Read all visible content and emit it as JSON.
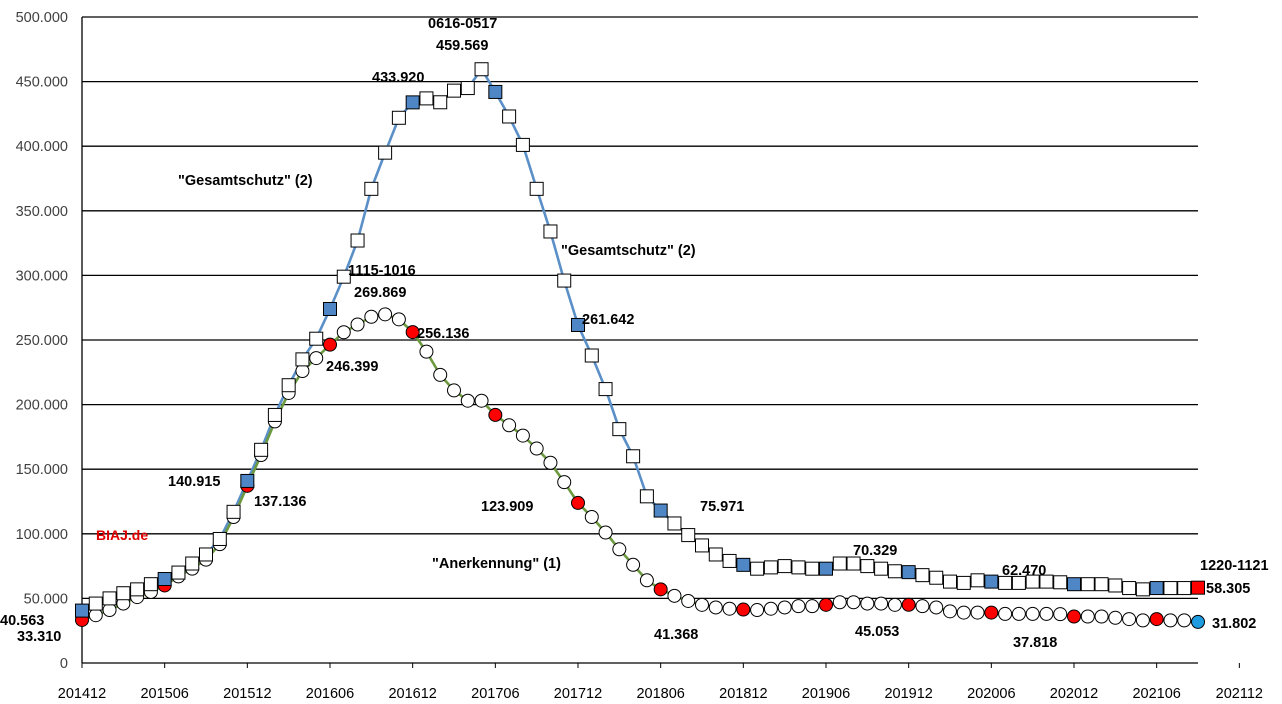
{
  "chart_data": {
    "type": "line",
    "x_start": "201412",
    "x_end": "202112",
    "xticks": [
      "201412",
      "201506",
      "201512",
      "201606",
      "201612",
      "201706",
      "201712",
      "201806",
      "201812",
      "201906",
      "201912",
      "202006",
      "202012",
      "202106",
      "202112"
    ],
    "ylim": [
      0,
      500000
    ],
    "yticks": [
      "0",
      "50.000",
      "100.000",
      "150.000",
      "200.000",
      "250.000",
      "300.000",
      "350.000",
      "400.000",
      "450.000",
      "500.000"
    ],
    "grid": "horizontal",
    "watermark": "BIAJ.de",
    "colors": {
      "gesamtschutz_line": "#5b8fc7",
      "gesamtschutz_highlight": "#4f86c6",
      "anerkennung_line": "#6d9a40",
      "anerkennung_highlight": "#ff0000",
      "last_anerkennung": "#1f9be0",
      "last_gesamtschutz": "#ff0000",
      "grid": "#000000"
    },
    "series": [
      {
        "id": "gesamtschutz",
        "marker": "square",
        "values": [
          40563,
          46000,
          50000,
          54000,
          57000,
          61000,
          65000,
          70000,
          77000,
          84000,
          96000,
          117000,
          140915,
          165000,
          192000,
          215000,
          235000,
          251000,
          274000,
          299000,
          327000,
          367000,
          395000,
          422000,
          433920,
          437000,
          434000,
          443000,
          445000,
          459569,
          442000,
          423000,
          401000,
          367000,
          334000,
          296000,
          261642,
          238000,
          212000,
          181000,
          160000,
          129000,
          118000,
          108000,
          99000,
          91000,
          84000,
          79000,
          75971,
          73000,
          74000,
          75000,
          74000,
          73000,
          73000,
          77000,
          77000,
          75000,
          73000,
          71000,
          70329,
          68000,
          66000,
          63000,
          62000,
          64000,
          63000,
          62000,
          62000,
          63000,
          63000,
          62470,
          61000,
          61000,
          61000,
          60000,
          58000,
          57000,
          58000,
          58000,
          58000,
          58305
        ]
      },
      {
        "id": "anerkennung",
        "marker": "circle",
        "values": [
          33310,
          37000,
          41000,
          46000,
          51000,
          55000,
          60000,
          67000,
          73000,
          80000,
          92000,
          113000,
          137136,
          161000,
          187000,
          209000,
          226000,
          236000,
          246399,
          256000,
          262000,
          268000,
          269869,
          266000,
          256136,
          241000,
          223000,
          211000,
          203000,
          203000,
          192000,
          184000,
          176000,
          166000,
          155000,
          140000,
          123909,
          113000,
          101000,
          88000,
          76000,
          64000,
          57000,
          52000,
          48000,
          45000,
          43000,
          42000,
          41368,
          41000,
          42000,
          43000,
          44000,
          44000,
          45000,
          47000,
          47000,
          46000,
          46000,
          45000,
          45053,
          44000,
          43000,
          40000,
          39000,
          39000,
          39000,
          38000,
          38000,
          38000,
          38000,
          37818,
          36000,
          36000,
          36000,
          35000,
          34000,
          33000,
          34000,
          33000,
          33000,
          31802
        ]
      }
    ],
    "highlight_indices": [
      0,
      6,
      12,
      18,
      24,
      30,
      36,
      42,
      48,
      54,
      60,
      66,
      72,
      78
    ],
    "point_labels": [
      {
        "text": "40.563"
      },
      {
        "text": "33.310"
      },
      {
        "text": "140.915"
      },
      {
        "text": "137.136"
      },
      {
        "text": "1115-1016"
      },
      {
        "text": "269.869"
      },
      {
        "text": "246.399"
      },
      {
        "text": "256.136"
      },
      {
        "text": "433.920"
      },
      {
        "text": "0616-0517"
      },
      {
        "text": "459.569"
      },
      {
        "text": "261.642"
      },
      {
        "text": "123.909"
      },
      {
        "text": "75.971"
      },
      {
        "text": "41.368"
      },
      {
        "text": "70.329"
      },
      {
        "text": "45.053"
      },
      {
        "text": "62.470"
      },
      {
        "text": "37.818"
      },
      {
        "text": "1220-1121"
      },
      {
        "text": "58.305"
      },
      {
        "text": "31.802"
      }
    ],
    "series_labels": [
      {
        "text": "\"Gesamtschutz\" (2)"
      },
      {
        "text": "\"Gesamtschutz\" (2)"
      },
      {
        "text": "\"Anerkennung\" (1)"
      }
    ]
  }
}
